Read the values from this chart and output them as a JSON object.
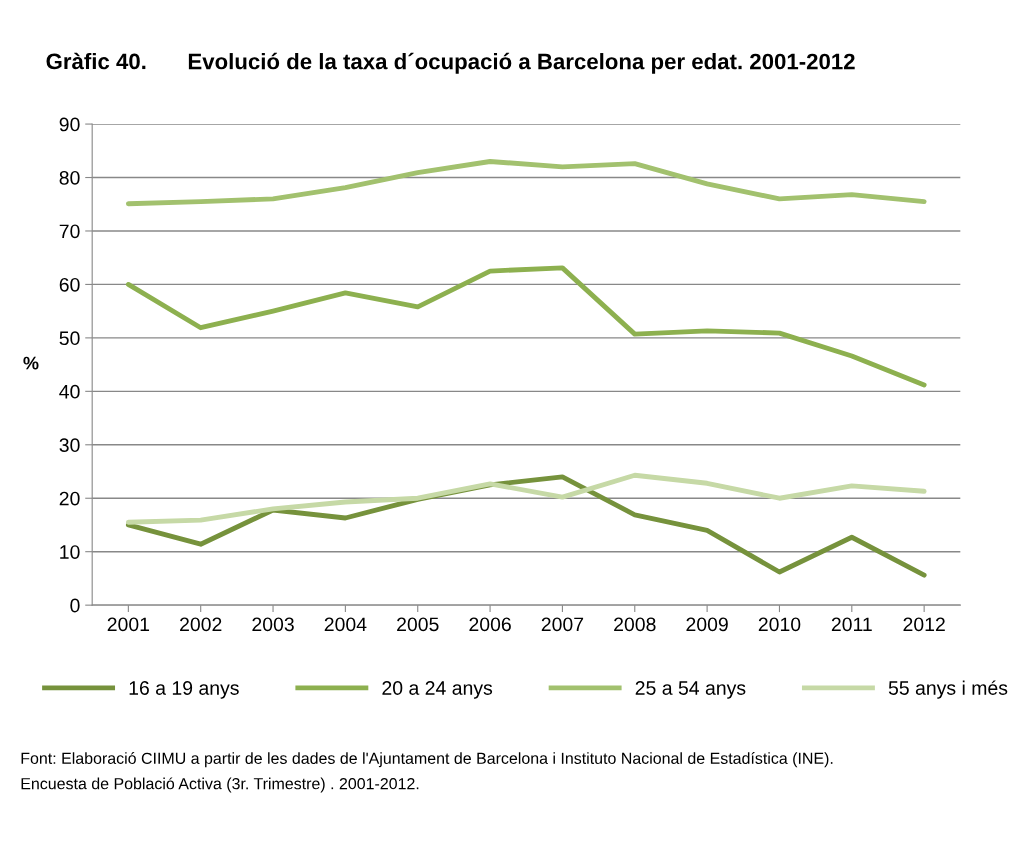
{
  "chart_data": {
    "type": "line",
    "title": "Gràfic 40.",
    "subtitle": "Evolució de la taxa d´ocupació a Barcelona per edat. 2001-2012",
    "ylabel": "%",
    "categories": [
      "2001",
      "2002",
      "2003",
      "2004",
      "2005",
      "2006",
      "2007",
      "2008",
      "2009",
      "2010",
      "2011",
      "2012"
    ],
    "series": [
      {
        "name": "16 a 19 anys",
        "color": "#76923c",
        "values": [
          15.0,
          11.4,
          17.8,
          16.3,
          19.8,
          22.5,
          24.0,
          16.9,
          14.0,
          6.2,
          12.7,
          5.6
        ]
      },
      {
        "name": "20 a 24 anys",
        "color": "#8db04f",
        "values": [
          60.0,
          51.9,
          55.0,
          58.4,
          55.8,
          62.5,
          63.1,
          50.7,
          51.3,
          50.9,
          46.6,
          41.2
        ]
      },
      {
        "name": "25 a 54 anys",
        "color": "#a2c16e",
        "values": [
          75.1,
          75.5,
          76.0,
          78.1,
          80.9,
          83.0,
          82.0,
          82.6,
          78.8,
          76.0,
          76.8,
          75.5
        ]
      },
      {
        "name": "55 anys i més",
        "color": "#c6d9a6",
        "values": [
          15.5,
          15.9,
          18.0,
          19.3,
          20.0,
          22.7,
          20.2,
          24.3,
          22.8,
          20.0,
          22.3,
          21.3
        ]
      }
    ],
    "ylim": [
      0,
      90
    ],
    "yticks": [
      0,
      10,
      20,
      30,
      40,
      50,
      60,
      70,
      80,
      90
    ],
    "grid": "y",
    "legend": "bottom",
    "marker": "none",
    "line_style": "solid",
    "annotations": [
      "Font: Elaboració CIIMU a partir de les dades de l'Ajuntament de Barcelona i Instituto Nacional de Estadística (INE).",
      "Encuesta de Població Activa (3r. Trimestre) . 2001-2012."
    ]
  }
}
